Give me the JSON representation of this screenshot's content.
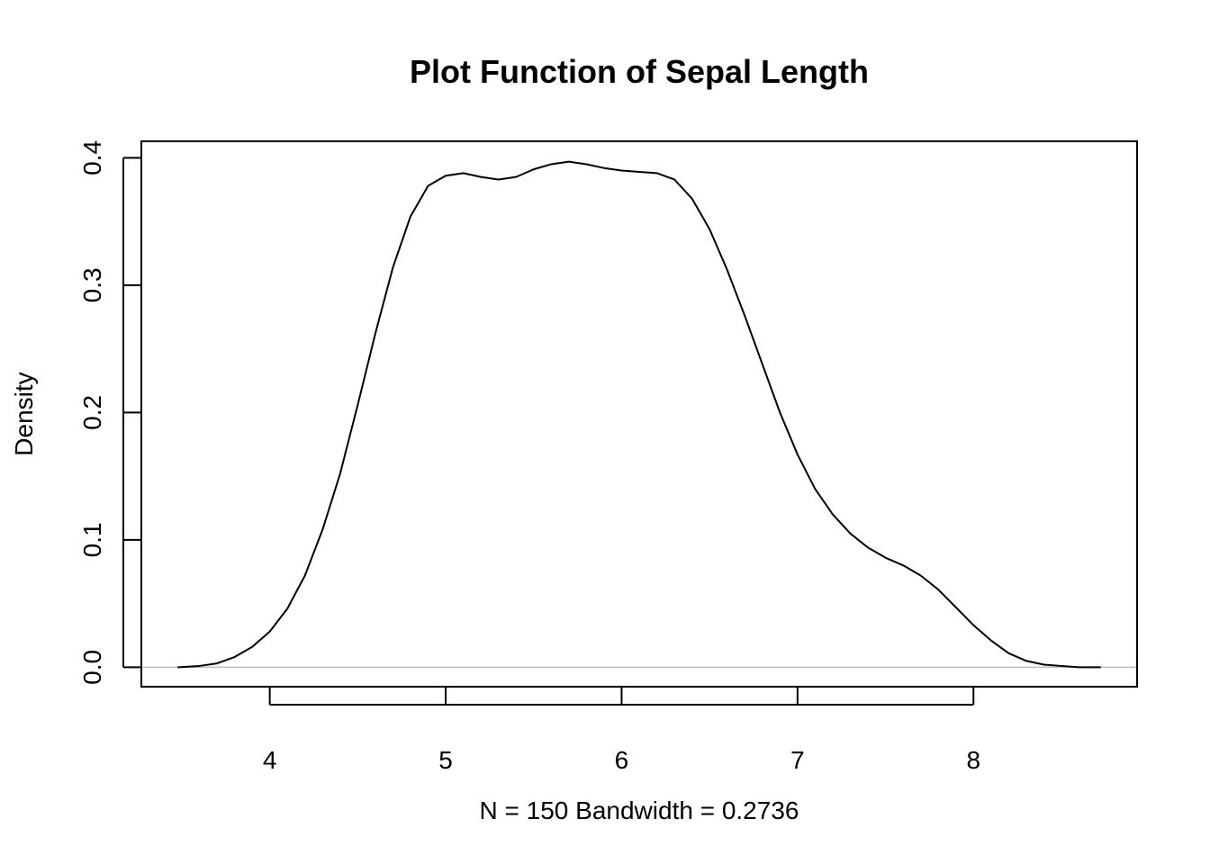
{
  "chart_data": {
    "type": "line",
    "title": "Plot Function of Sepal Length",
    "xlabel": "N = 150   Bandwidth = 0.2736",
    "ylabel": "Density",
    "xlim": [
      3.27,
      8.93
    ],
    "ylim": [
      -0.0153,
      0.413
    ],
    "x_ticks": [
      4,
      5,
      6,
      7,
      8
    ],
    "x_tick_labels": [
      "4",
      "5",
      "6",
      "7",
      "8"
    ],
    "y_ticks": [
      0.0,
      0.1,
      0.2,
      0.3,
      0.4
    ],
    "y_tick_labels": [
      "0.0",
      "0.1",
      "0.2",
      "0.3",
      "0.4"
    ],
    "grid": false,
    "baseline": {
      "y": 0,
      "color": "#bebebe"
    },
    "series": [
      {
        "color": "#000000",
        "x": [
          3.48,
          3.6,
          3.7,
          3.8,
          3.9,
          4.0,
          4.1,
          4.2,
          4.3,
          4.4,
          4.5,
          4.6,
          4.7,
          4.8,
          4.9,
          5.0,
          5.1,
          5.2,
          5.3,
          5.4,
          5.5,
          5.6,
          5.7,
          5.8,
          5.9,
          6.0,
          6.1,
          6.2,
          6.3,
          6.4,
          6.5,
          6.6,
          6.7,
          6.8,
          6.9,
          7.0,
          7.1,
          7.2,
          7.3,
          7.4,
          7.5,
          7.6,
          7.7,
          7.8,
          7.9,
          8.0,
          8.1,
          8.2,
          8.3,
          8.4,
          8.5,
          8.6,
          8.72
        ],
        "y": [
          0.0,
          0.001,
          0.003,
          0.008,
          0.016,
          0.028,
          0.046,
          0.072,
          0.108,
          0.152,
          0.206,
          0.262,
          0.314,
          0.354,
          0.378,
          0.386,
          0.388,
          0.385,
          0.383,
          0.385,
          0.391,
          0.395,
          0.397,
          0.395,
          0.392,
          0.39,
          0.389,
          0.388,
          0.383,
          0.368,
          0.344,
          0.312,
          0.276,
          0.238,
          0.2,
          0.167,
          0.14,
          0.12,
          0.105,
          0.094,
          0.086,
          0.08,
          0.072,
          0.061,
          0.047,
          0.033,
          0.021,
          0.011,
          0.005,
          0.002,
          0.001,
          0.0,
          0.0
        ]
      }
    ]
  }
}
